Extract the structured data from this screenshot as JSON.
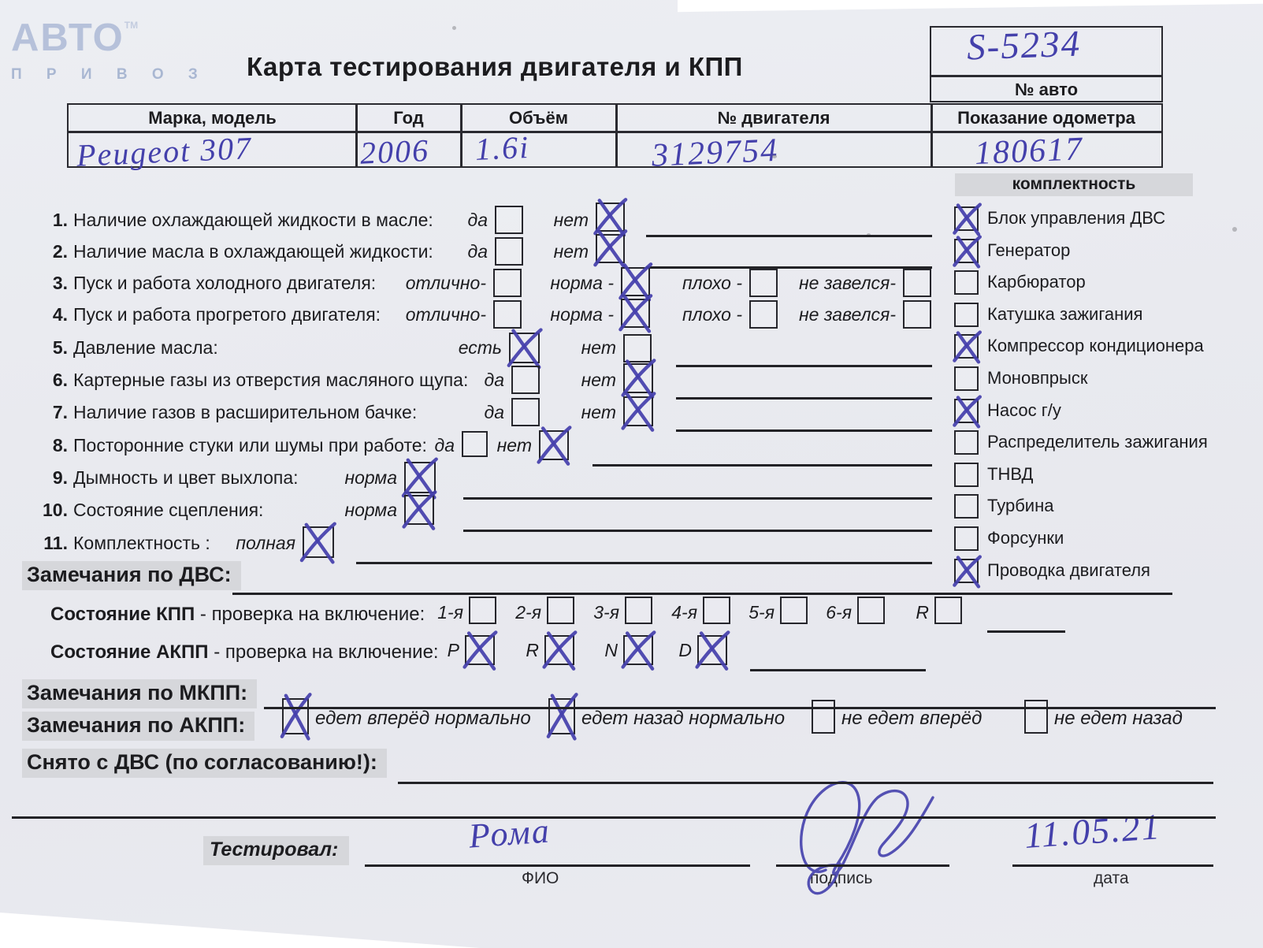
{
  "logo": {
    "name": "АВТО",
    "sub": "П Р И В О З",
    "tm": "TM"
  },
  "title": "Карта тестирования двигателя  и КПП",
  "car_box": {
    "value": "S-5234",
    "label": "№ авто"
  },
  "vehicle": {
    "headers": [
      "Марка, модель",
      "Год",
      "Объём",
      "№ двигателя",
      "Показание одометра"
    ],
    "values": [
      "Peugeot 307",
      "2006",
      "1.6i",
      "3129754",
      "180617"
    ]
  },
  "equipment": {
    "header": "комплектность",
    "items": [
      {
        "label": "Блок управления ДВС",
        "checked": true
      },
      {
        "label": "Генератор",
        "checked": true
      },
      {
        "label": "Карбюратор",
        "checked": false
      },
      {
        "label": "Катушка зажигания",
        "checked": false
      },
      {
        "label": "Компрессор кондиционера",
        "checked": true
      },
      {
        "label": "Моновпрыск",
        "checked": false
      },
      {
        "label": "Насос г/у",
        "checked": true
      },
      {
        "label": "Распределитель зажигания",
        "checked": false
      },
      {
        "label": "ТНВД",
        "checked": false
      },
      {
        "label": "Турбина",
        "checked": false
      },
      {
        "label": "Форсунки",
        "checked": false
      },
      {
        "label": "Проводка двигателя",
        "checked": true
      }
    ]
  },
  "checks": [
    {
      "num": "1.",
      "label": "Наличие охлаждающей жидкости в масле:",
      "options": [
        {
          "label": "да",
          "checked": false
        },
        {
          "label": "нет",
          "checked": true
        }
      ]
    },
    {
      "num": "2.",
      "label": "Наличие масла в охлаждающей жидкости:",
      "options": [
        {
          "label": "да",
          "checked": false
        },
        {
          "label": "нет",
          "checked": true
        }
      ]
    },
    {
      "num": "3.",
      "label": "Пуск и работа холодного двигателя:",
      "options": [
        {
          "label": "отлично-",
          "checked": false
        },
        {
          "label": "норма -",
          "checked": true
        },
        {
          "label": "плохо -",
          "checked": false
        },
        {
          "label": "не завелся-",
          "checked": false
        }
      ]
    },
    {
      "num": "4.",
      "label": "Пуск и работа прогретого двигателя:",
      "options": [
        {
          "label": "отлично-",
          "checked": false
        },
        {
          "label": "норма -",
          "checked": true
        },
        {
          "label": "плохо -",
          "checked": false
        },
        {
          "label": "не завелся-",
          "checked": false
        }
      ]
    },
    {
      "num": "5.",
      "label": "Давление масла:",
      "options": [
        {
          "label": "есть",
          "checked": true
        },
        {
          "label": "нет",
          "checked": false
        }
      ]
    },
    {
      "num": "6.",
      "label": "Картерные газы из отверстия масляного щупа:",
      "options": [
        {
          "label": "да",
          "checked": false
        },
        {
          "label": "нет",
          "checked": true
        }
      ]
    },
    {
      "num": "7.",
      "label": "Наличие газов в расширительном бачке:",
      "options": [
        {
          "label": "да",
          "checked": false
        },
        {
          "label": "нет",
          "checked": true
        }
      ]
    },
    {
      "num": "8.",
      "label": "Посторонние стуки или шумы при работе:",
      "options": [
        {
          "label": "да",
          "checked": false
        },
        {
          "label": "нет",
          "checked": true
        }
      ]
    },
    {
      "num": "9.",
      "label": "Дымность и цвет выхлопа:",
      "options": [
        {
          "label": "норма",
          "checked": true
        }
      ]
    },
    {
      "num": "10.",
      "label": "Состояние сцепления:",
      "options": [
        {
          "label": "норма",
          "checked": true
        }
      ]
    },
    {
      "num": "11.",
      "label": "Комплектность :",
      "options": [
        {
          "label": "полная",
          "checked": true
        }
      ]
    }
  ],
  "kpp": {
    "bold": "Состояние КПП",
    "rest": " - проверка на включение:",
    "gears": [
      {
        "label": "1-я",
        "checked": false
      },
      {
        "label": "2-я",
        "checked": false
      },
      {
        "label": "3-я",
        "checked": false
      },
      {
        "label": "4-я",
        "checked": false
      },
      {
        "label": "5-я",
        "checked": false
      },
      {
        "label": "6-я",
        "checked": false
      },
      {
        "label": "R",
        "checked": false
      }
    ]
  },
  "akpp": {
    "bold": "Состояние АКПП",
    "rest": " - проверка на включение:",
    "gears": [
      {
        "label": "P",
        "checked": true
      },
      {
        "label": "R",
        "checked": true
      },
      {
        "label": "N",
        "checked": true
      },
      {
        "label": "D",
        "checked": true
      }
    ]
  },
  "sections": {
    "remarks_dvs": "Замечания по ДВС:",
    "remarks_mkpp": "Замечания по МКПП:",
    "remarks_akpp": "Замечания по АКПП:",
    "removed": "Снято с ДВС (по согласованию!):"
  },
  "akpp_options": [
    {
      "label": "едет вперёд нормально",
      "checked": true
    },
    {
      "label": "едет назад нормально",
      "checked": true
    },
    {
      "label": "не едет вперёд",
      "checked": false
    },
    {
      "label": "не едет назад",
      "checked": false
    }
  ],
  "footer": {
    "tested_label": "Тестировал:",
    "name": "Рома",
    "fio_label": "ФИО",
    "sign_label": "подпись",
    "date_value": "11.05.21",
    "date_label": "дата"
  }
}
